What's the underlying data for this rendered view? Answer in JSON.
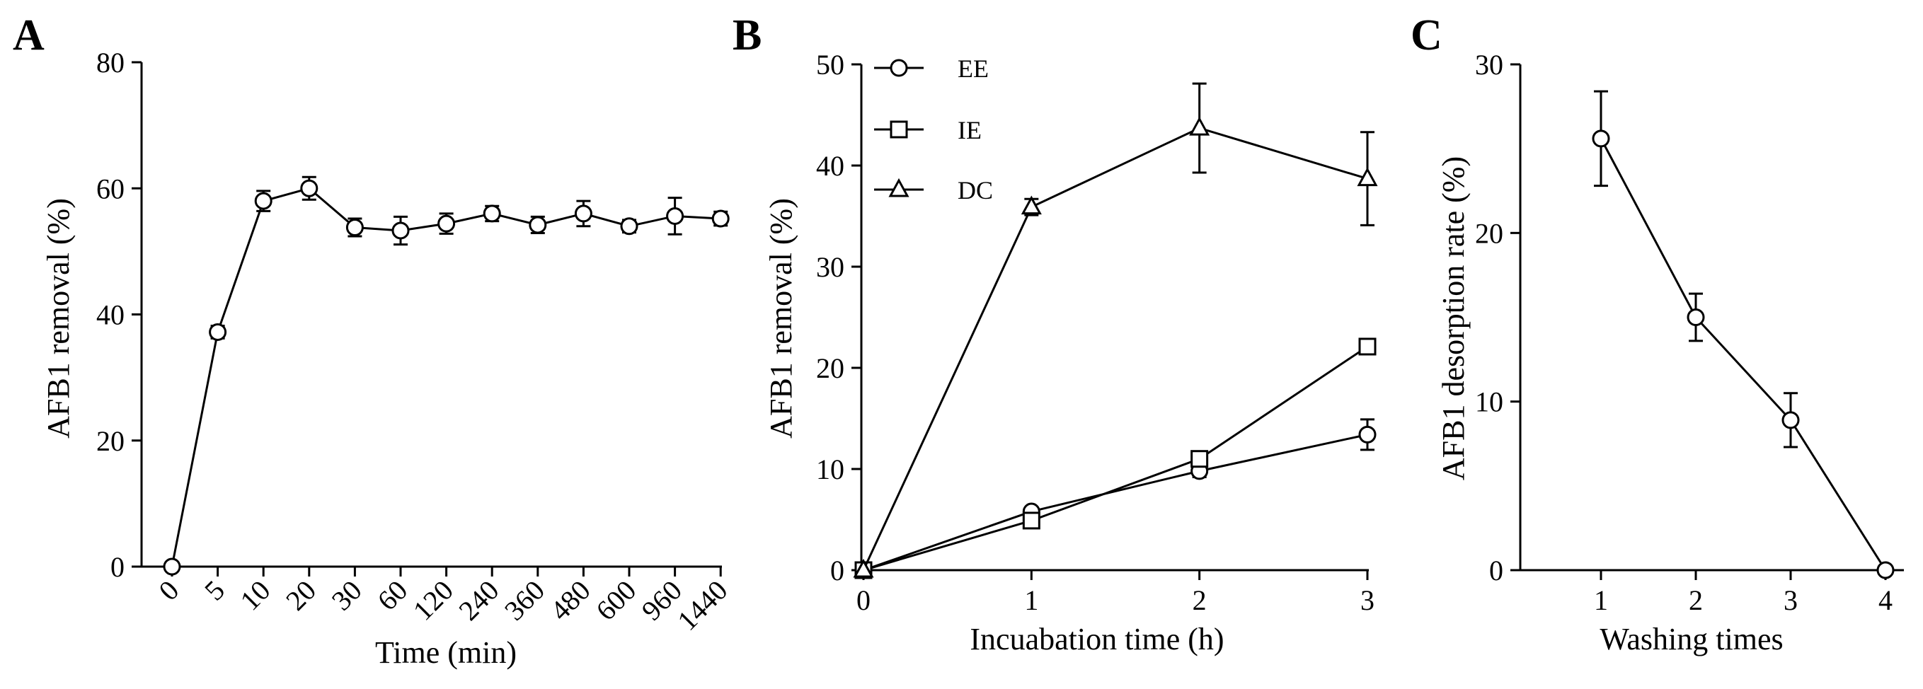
{
  "chart_data": [
    {
      "panel_letter": "A",
      "type": "line",
      "categories": [
        "0",
        "5",
        "10",
        "20",
        "30",
        "60",
        "120",
        "240",
        "360",
        "480",
        "600",
        "960",
        "1440"
      ],
      "series": [
        {
          "name": "AFB1 removal",
          "marker": "circle",
          "values": [
            0,
            37.2,
            58.0,
            60.0,
            53.8,
            53.3,
            54.4,
            56.0,
            54.2,
            56.0,
            54.0,
            55.6,
            55.2
          ],
          "errors": [
            0,
            1.0,
            1.6,
            1.8,
            1.4,
            2.2,
            1.6,
            1.2,
            1.3,
            2.0,
            1.0,
            2.9,
            1.1
          ]
        }
      ],
      "xlabel": "Time (min)",
      "ylabel": "AFB1 removal (%)",
      "ylim": [
        0,
        80
      ],
      "yticks": [
        0,
        20,
        40,
        60,
        80
      ],
      "tick_labels_rotated": true
    },
    {
      "panel_letter": "B",
      "type": "line",
      "x": [
        0,
        1,
        2,
        3
      ],
      "series": [
        {
          "name": "EE",
          "marker": "circle",
          "values": [
            0,
            5.8,
            9.8,
            13.4
          ],
          "errors": [
            0,
            0.4,
            0.6,
            1.5
          ]
        },
        {
          "name": "IE",
          "marker": "square",
          "values": [
            0,
            4.9,
            11.0,
            22.1
          ],
          "errors": [
            0,
            0.3,
            0.5,
            0.5
          ]
        },
        {
          "name": "DC",
          "marker": "triangle",
          "values": [
            0,
            35.9,
            43.7,
            38.7
          ],
          "errors": [
            0,
            0.8,
            4.4,
            4.6
          ]
        }
      ],
      "legend": {
        "position": "top-left",
        "entries": [
          "EE",
          "IE",
          "DC"
        ]
      },
      "xlabel": "Incuabation time (h)",
      "ylabel": "AFB1 removal (%)",
      "xlim": [
        0,
        3
      ],
      "xticks": [
        "0",
        "1",
        "2",
        "3"
      ],
      "ylim": [
        0,
        50
      ],
      "yticks": [
        0,
        10,
        20,
        30,
        40,
        50
      ]
    },
    {
      "panel_letter": "C",
      "type": "line",
      "x": [
        1,
        2,
        3,
        4
      ],
      "series": [
        {
          "name": "AFB1 desorption rate",
          "marker": "circle",
          "values": [
            25.6,
            15.0,
            8.9,
            0
          ],
          "errors": [
            2.8,
            1.4,
            1.6,
            0
          ]
        }
      ],
      "xlabel": "Washing times",
      "ylabel": "AFB1 desorption rate (%)",
      "xticks": [
        "1",
        "2",
        "3",
        "4"
      ],
      "ylim": [
        0,
        30
      ],
      "yticks": [
        0,
        10,
        20,
        30
      ]
    }
  ]
}
